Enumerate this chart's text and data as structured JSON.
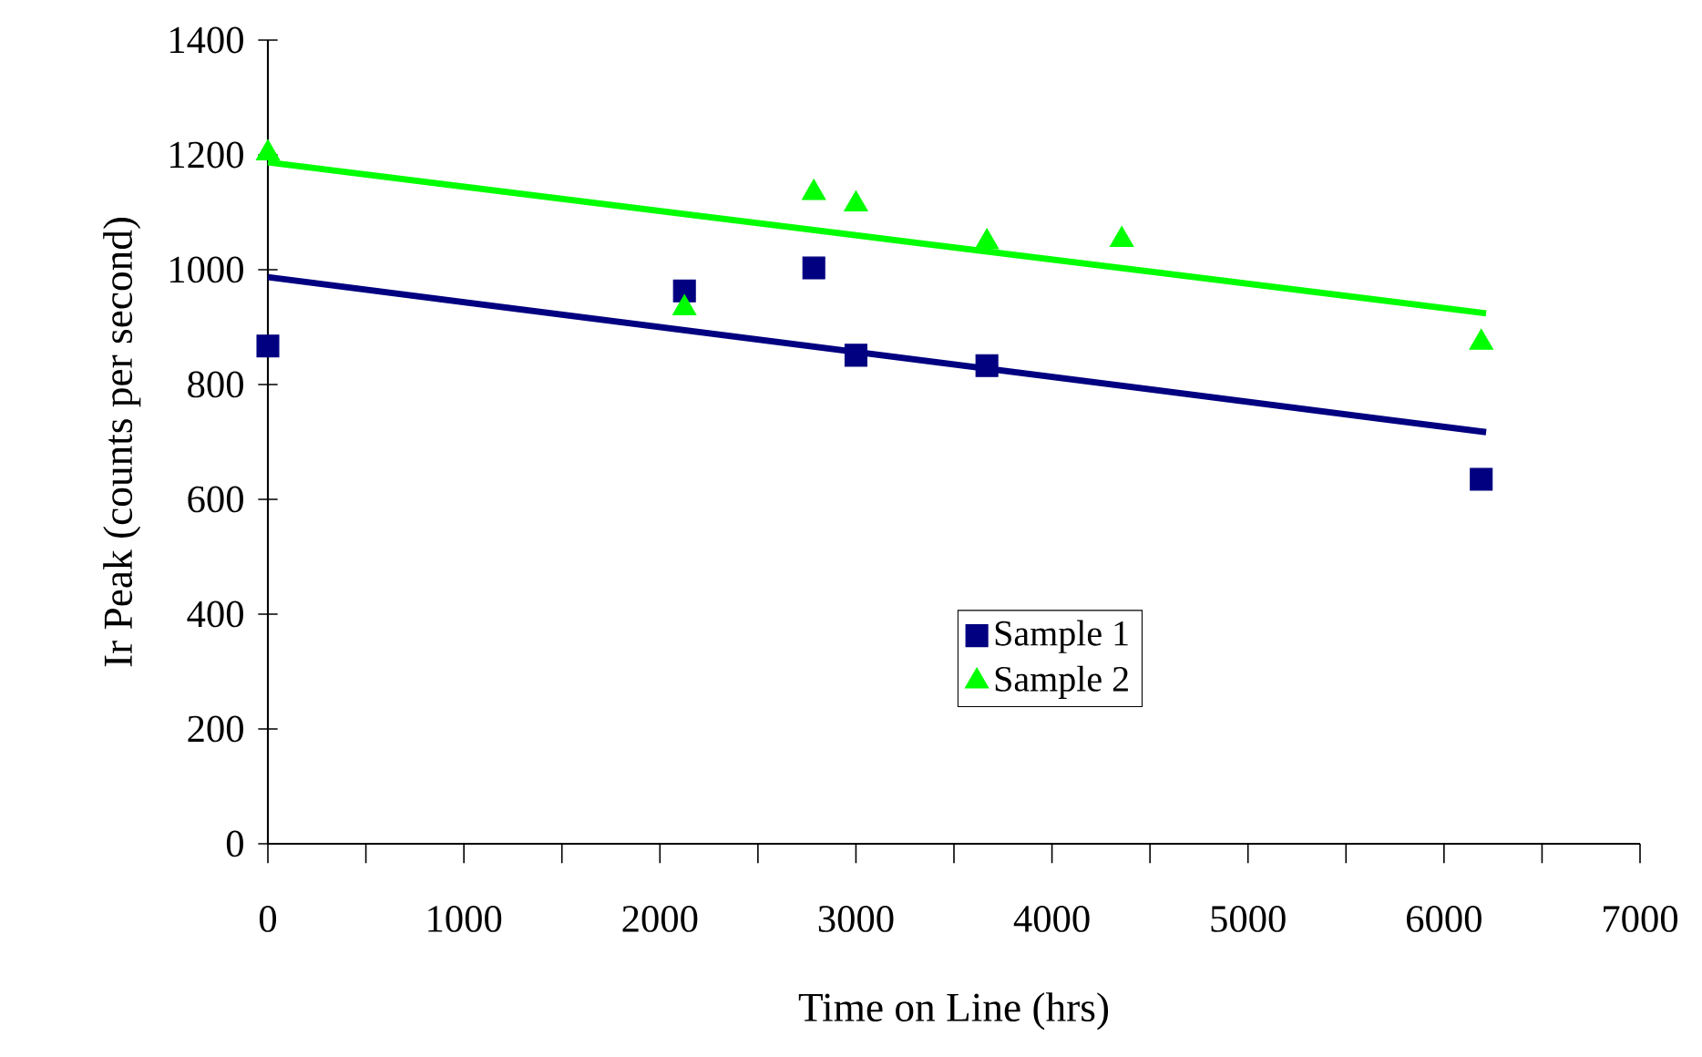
{
  "chart_data": {
    "type": "scatter",
    "xlabel": "Time on Line (hrs)",
    "ylabel": "Ir Peak (counts per second)",
    "xlim": [
      0,
      7000
    ],
    "xticks": [
      0,
      1000,
      2000,
      3000,
      4000,
      5000,
      6000,
      7000
    ],
    "ylim": [
      0,
      1400
    ],
    "yticks": [
      0,
      200,
      400,
      600,
      800,
      1000,
      1200,
      1400
    ],
    "grid": false,
    "legend": "bottom",
    "series": [
      {
        "name": "Sample 1",
        "marker": "square",
        "color": "#000080",
        "x": [
          0,
          2125,
          2785,
          3000,
          3668,
          6190
        ],
        "values": [
          867,
          963,
          1003,
          851,
          833,
          635
        ]
      },
      {
        "name": "Sample 2",
        "marker": "triangle",
        "color": "#00ff00",
        "x": [
          0,
          2125,
          2785,
          3000,
          3668,
          4356,
          6190
        ],
        "values": [
          1203,
          933,
          1134,
          1114,
          1048,
          1052,
          873
        ]
      },
      {
        "type": "line",
        "color": "#000080",
        "x": [
          0,
          6215
        ],
        "values": [
          987,
          717
        ]
      },
      {
        "type": "line",
        "color": "#00ff00",
        "x": [
          0,
          6215
        ],
        "values": [
          1187,
          924
        ]
      }
    ]
  }
}
